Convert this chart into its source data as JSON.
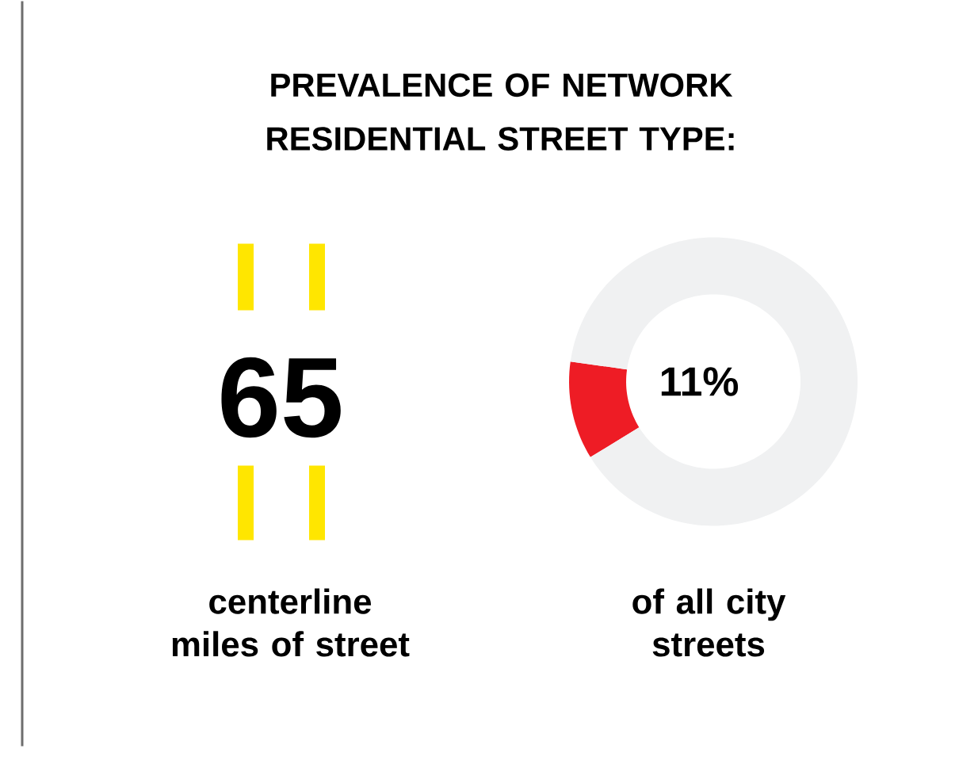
{
  "chart_data": {
    "type": "donut",
    "title": "PREVALENCE OF NETWORK RESIDENTIAL STREET TYPE:",
    "categories": [
      null,
      null
    ],
    "values": [
      11,
      89
    ],
    "colors": [
      "#ee1c25",
      "#f0f1f2"
    ],
    "value_labels": [
      "11%",
      null
    ],
    "annotations": [
      "65",
      "centerline miles of street",
      "of all city streets"
    ]
  }
}
